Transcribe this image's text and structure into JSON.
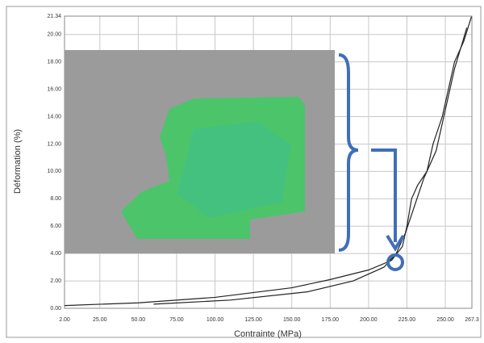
{
  "chart_data": {
    "type": "line",
    "x_label": "Contrainte (MPa)",
    "y_label": "Déformation (%)",
    "xlim": [
      2,
      267.3
    ],
    "ylim": [
      0,
      21.34
    ],
    "xticks": [
      {
        "value": 2,
        "label": "2.00"
      },
      {
        "value": 25,
        "label": "25.00"
      },
      {
        "value": 50,
        "label": "50.00"
      },
      {
        "value": 75,
        "label": "75.00"
      },
      {
        "value": 100,
        "label": "100.00"
      },
      {
        "value": 125,
        "label": "125.00"
      },
      {
        "value": 150,
        "label": "150.00"
      },
      {
        "value": 175,
        "label": "175.00"
      },
      {
        "value": 200,
        "label": "200.00"
      },
      {
        "value": 225,
        "label": "225.00"
      },
      {
        "value": 250,
        "label": "250.00"
      },
      {
        "value": 267.3,
        "label": "267.3"
      }
    ],
    "yticks": [
      {
        "value": 0,
        "label": "0.00"
      },
      {
        "value": 2,
        "label": "2.00"
      },
      {
        "value": 4,
        "label": "4.00"
      },
      {
        "value": 6,
        "label": "6.00"
      },
      {
        "value": 8,
        "label": "8.00"
      },
      {
        "value": 10,
        "label": "10.00"
      },
      {
        "value": 12,
        "label": "12.00"
      },
      {
        "value": 14,
        "label": "14.00"
      },
      {
        "value": 16,
        "label": "16.00"
      },
      {
        "value": 18,
        "label": "18.00"
      },
      {
        "value": 20,
        "label": "20.00"
      },
      {
        "value": 21.34,
        "label": "21.34"
      }
    ],
    "grid": true,
    "series": [
      {
        "color": "#222222",
        "x": [
          2,
          50,
          100,
          150,
          175,
          200,
          215,
          222,
          225,
          228,
          232,
          238,
          242,
          248,
          252,
          256,
          262,
          267
        ],
        "values": [
          0.2,
          0.4,
          0.8,
          1.5,
          2.1,
          2.8,
          3.5,
          4.5,
          6,
          8,
          9,
          10,
          12,
          14,
          16,
          18,
          19.5,
          21.3
        ]
      },
      {
        "color": "#222222",
        "x": [
          60,
          110,
          160,
          190,
          210,
          218,
          224,
          230,
          236,
          244,
          250,
          256,
          264
        ],
        "values": [
          0.3,
          0.6,
          1.2,
          2.0,
          3.0,
          4.0,
          5.5,
          7.5,
          9.5,
          11.5,
          14.5,
          17.5,
          20.5
        ]
      }
    ]
  }
}
